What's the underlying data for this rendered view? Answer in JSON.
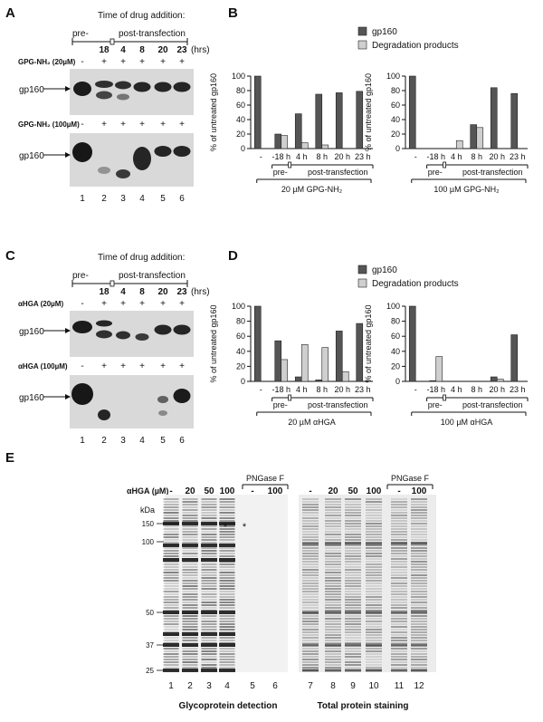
{
  "panel_labels": {
    "A": "A",
    "B": "B",
    "C": "C",
    "D": "D",
    "E": "E"
  },
  "colors": {
    "gp160": "#555555",
    "degradation": "#cfcfcf",
    "blot_bg": "#d9d9d9",
    "band": "#111111"
  },
  "panelA": {
    "heading": "Time of drug addition:",
    "pre": "pre-",
    "post": "post-transfection",
    "times": [
      "18",
      "4",
      "8",
      "20",
      "23"
    ],
    "hrs": "(hrs)",
    "row1_label": "GPG-NH₂ (20µM)",
    "row2_label": "GPG-NH₂ (100µM)",
    "signs": [
      "-",
      "+",
      "+",
      "+",
      "+",
      "+"
    ],
    "band_label": "gp160",
    "lanes": [
      "1",
      "2",
      "3",
      "4",
      "5",
      "6"
    ]
  },
  "panelC": {
    "heading": "Time of drug addition:",
    "pre": "pre-",
    "post": "post-transfection",
    "times": [
      "18",
      "4",
      "8",
      "20",
      "23"
    ],
    "hrs": "(hrs)",
    "row1_label": "αHGA (20µM)",
    "row2_label": "αHGA (100µM)",
    "signs": [
      "-",
      "+",
      "+",
      "+",
      "+",
      "+"
    ],
    "band_label": "gp160",
    "lanes": [
      "1",
      "2",
      "3",
      "4",
      "5",
      "6"
    ]
  },
  "legend": {
    "gp160": "gp160",
    "degradation": "Degradation products"
  },
  "chart_data": [
    {
      "type": "bar",
      "panel": "B",
      "ylabel": "% of untreated gp160",
      "ylim": [
        0,
        100
      ],
      "yticks": [
        "0",
        "20",
        "40",
        "60",
        "80",
        "100"
      ],
      "categories": [
        "-",
        "-18 h",
        "4 h",
        "8 h",
        "20 h",
        "23 h"
      ],
      "series": [
        {
          "name": "gp160",
          "values": [
            100,
            20,
            48,
            75,
            77,
            79
          ]
        },
        {
          "name": "Degradation products",
          "values": [
            null,
            18,
            8,
            5,
            null,
            null
          ]
        }
      ],
      "group_pre": "pre-",
      "group_post": "post-transfection",
      "treatment": "20 µM GPG-NH₂"
    },
    {
      "type": "bar",
      "panel": "B",
      "ylabel": "% of untreated gp160",
      "ylim": [
        0,
        100
      ],
      "yticks": [
        "0",
        "20",
        "40",
        "60",
        "80",
        "100"
      ],
      "categories": [
        "-",
        "-18 h",
        "4 h",
        "8 h",
        "20 h",
        "23 h"
      ],
      "series": [
        {
          "name": "gp160",
          "values": [
            100,
            null,
            null,
            33,
            84,
            76
          ]
        },
        {
          "name": "Degradation products",
          "values": [
            null,
            null,
            11,
            29,
            null,
            null
          ]
        }
      ],
      "group_pre": "pre-",
      "group_post": "post-transfection",
      "treatment": "100 µM GPG-NH₂"
    },
    {
      "type": "bar",
      "panel": "D",
      "ylabel": "% of untreated gp160",
      "ylim": [
        0,
        100
      ],
      "yticks": [
        "0",
        "20",
        "40",
        "60",
        "80",
        "100"
      ],
      "categories": [
        "-",
        "-18 h",
        "4 h",
        "8 h",
        "20 h",
        "23 h"
      ],
      "series": [
        {
          "name": "gp160",
          "values": [
            100,
            54,
            6,
            2,
            67,
            77
          ]
        },
        {
          "name": "Degradation products",
          "values": [
            null,
            29,
            49,
            45,
            13,
            null
          ]
        }
      ],
      "group_pre": "pre-",
      "group_post": "post-transfection",
      "treatment": "20 µM αHGA"
    },
    {
      "type": "bar",
      "panel": "D",
      "ylabel": "% of untreated gp160",
      "ylim": [
        0,
        100
      ],
      "yticks": [
        "0",
        "20",
        "40",
        "60",
        "80",
        "100"
      ],
      "categories": [
        "-",
        "-18 h",
        "4 h",
        "8 h",
        "20 h",
        "23 h"
      ],
      "series": [
        {
          "name": "gp160",
          "values": [
            100,
            1,
            null,
            null,
            6,
            62
          ]
        },
        {
          "name": "Degradation products",
          "values": [
            null,
            33,
            null,
            null,
            3,
            null
          ]
        }
      ],
      "group_pre": "pre-",
      "group_post": "post-transfection",
      "treatment": "100 µM αHGA"
    }
  ],
  "panelE": {
    "drug_label": "αHGA (µM)",
    "pngase": "PNGase F",
    "conc_left": [
      "-",
      "20",
      "50",
      "100",
      "-",
      "100"
    ],
    "conc_right": [
      "-",
      "20",
      "50",
      "100",
      "-",
      "100"
    ],
    "kda": "kDa",
    "markers": [
      "150",
      "100",
      "50",
      "37",
      "25"
    ],
    "marker_vals": [
      150,
      100,
      50,
      37,
      25
    ],
    "star": "*",
    "lanes_left": [
      "1",
      "2",
      "3",
      "4",
      "5",
      "6"
    ],
    "lanes_right": [
      "7",
      "8",
      "9",
      "10",
      "11",
      "12"
    ],
    "caption_left": "Glycoprotein detection",
    "caption_right": "Total protein staining"
  }
}
